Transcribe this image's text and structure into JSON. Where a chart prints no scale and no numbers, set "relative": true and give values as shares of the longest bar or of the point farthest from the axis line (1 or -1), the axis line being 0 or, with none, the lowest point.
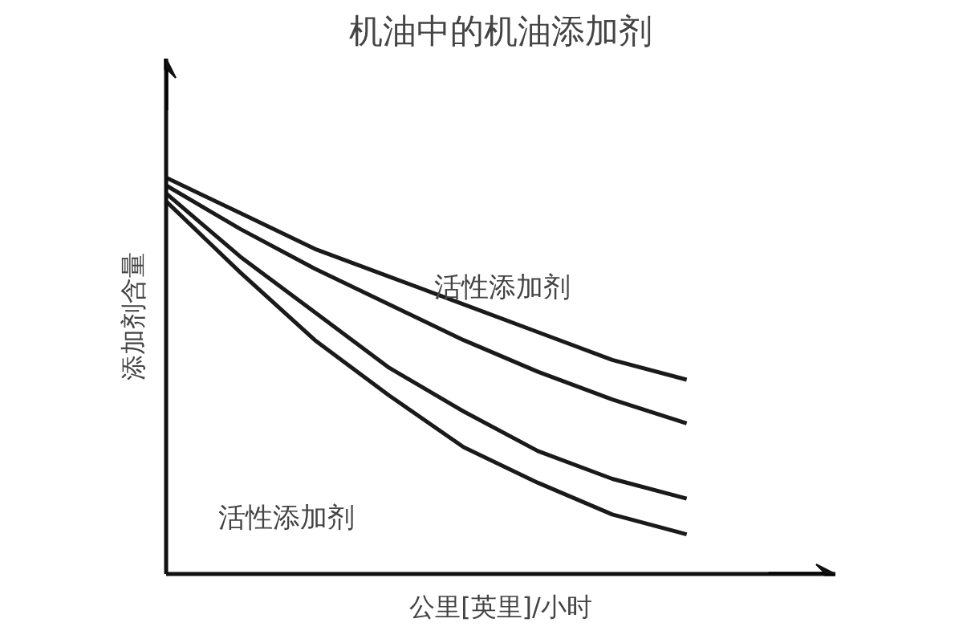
{
  "chart_data": {
    "type": "line",
    "title": "机油中的机油添加剂",
    "xlabel": "公里[英里]/小时",
    "ylabel": "添加剂含量",
    "relative": true,
    "grid": false,
    "marker": "none",
    "line_style": "solid",
    "categories": [
      null,
      null,
      null,
      null,
      null,
      null,
      null,
      null
    ],
    "series": [
      {
        "color": "#1a1a1a",
        "values": [
          1,
          0.91,
          0.82,
          0.75,
          0.68,
          0.61,
          0.54,
          0.49
        ]
      },
      {
        "color": "#1a1a1a",
        "values": [
          0.98,
          0.87,
          0.77,
          0.68,
          0.59,
          0.51,
          0.44,
          0.38
        ]
      },
      {
        "color": "#1a1a1a",
        "values": [
          0.96,
          0.8,
          0.66,
          0.52,
          0.41,
          0.31,
          0.24,
          0.19
        ]
      },
      {
        "color": "#1a1a1a",
        "values": [
          0.94,
          0.76,
          0.59,
          0.45,
          0.32,
          0.23,
          0.15,
          0.1
        ]
      }
    ],
    "annotations": [
      "活性添加剂",
      "活性添加剂"
    ]
  }
}
